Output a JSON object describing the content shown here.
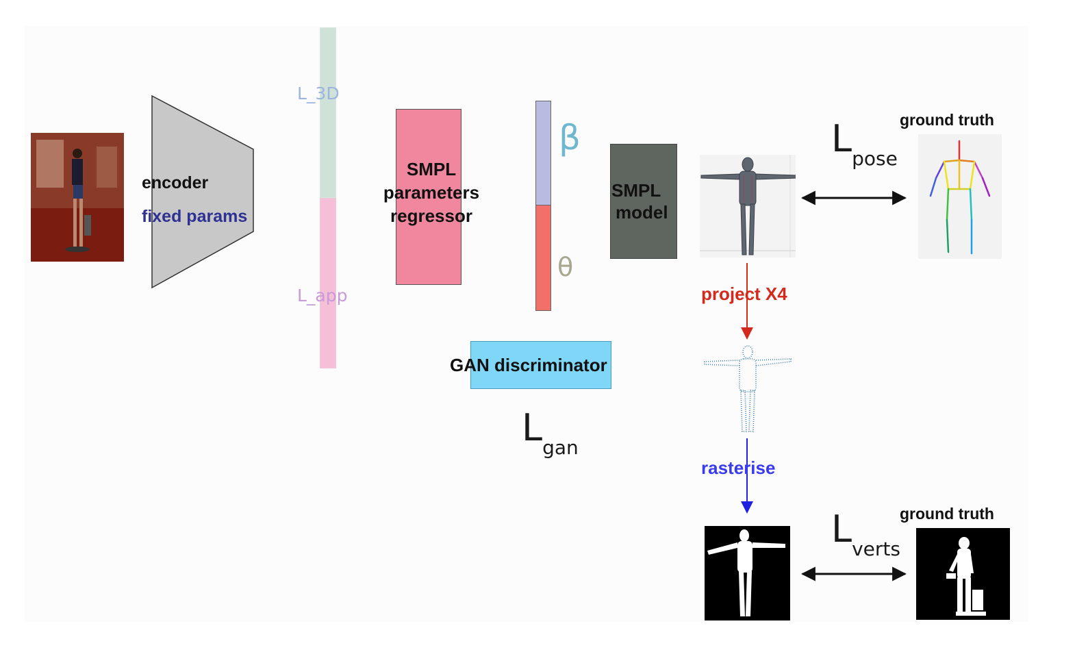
{
  "encoder": {
    "label": "encoder",
    "sublabel": "fixed params",
    "sublabel_color": "#2e3192",
    "fill": "#c8c8c8"
  },
  "feature_bar": {
    "top_label": "L_3D",
    "bottom_label": "L_app",
    "top_color": "#cfe2d8",
    "bottom_color": "#f6bfd8",
    "top_label_color": "#9fb3e0",
    "bottom_label_color": "#c89ad8"
  },
  "regressor": {
    "line1": "SMPL",
    "line2": "parameters",
    "line3": "regressor",
    "fill": "#f0879e"
  },
  "params": {
    "beta_symbol": "β",
    "theta_symbol": "θ",
    "beta_color": "#b8bce0",
    "theta_color": "#f26f6a"
  },
  "smpl_model": {
    "line1": "SMPL",
    "line2": "model",
    "fill": "#5f6660"
  },
  "gan": {
    "label": "GAN discriminator",
    "fill": "#7fd6f6"
  },
  "losses": {
    "pose": {
      "main": "L",
      "sub": "pose"
    },
    "gan": {
      "main": "L",
      "sub": "gan"
    },
    "verts": {
      "main": "L",
      "sub": "verts"
    }
  },
  "ground_truth_top": "ground truth",
  "ground_truth_bottom": "ground truth",
  "project_label": "project X4",
  "project_color": "#d42a1e",
  "rasterise_label": "rasterise",
  "rasterise_color": "#3a3af0"
}
